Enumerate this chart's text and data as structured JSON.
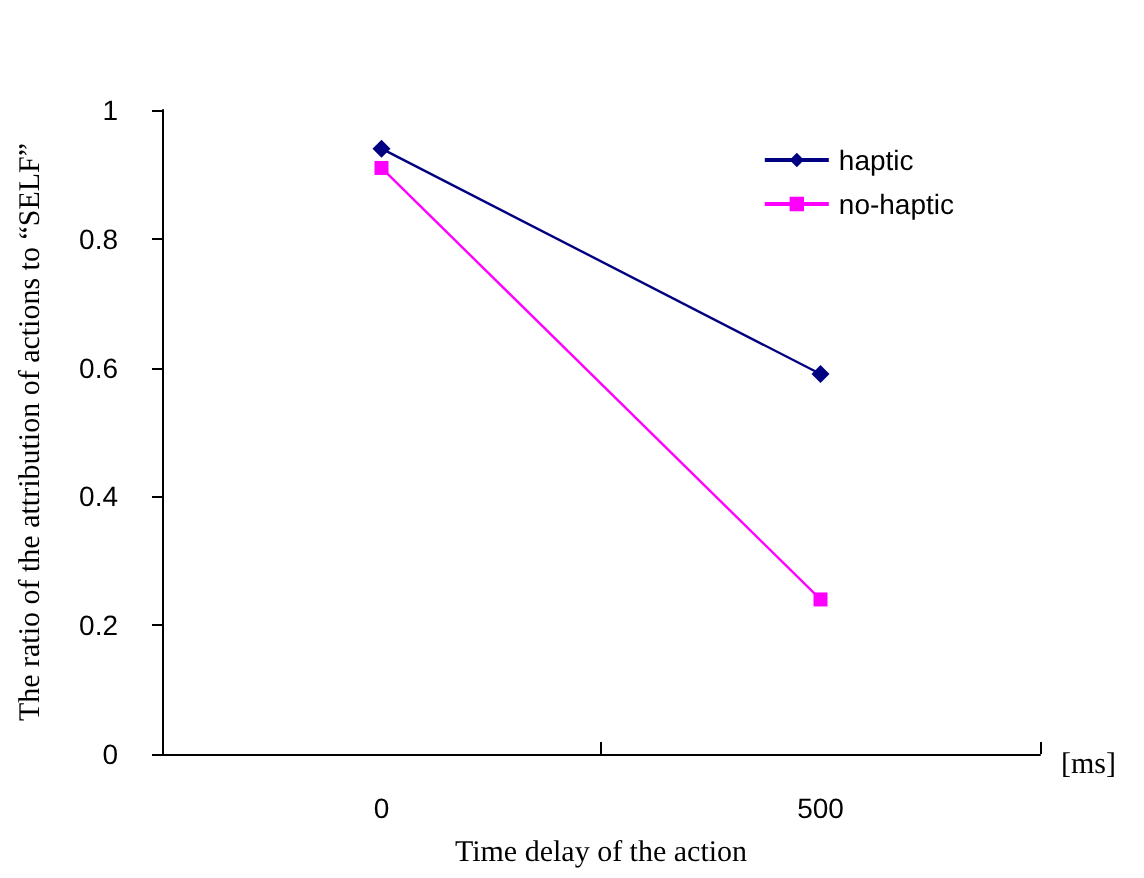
{
  "chart_data": {
    "type": "line",
    "xlabel": "Time delay of the action",
    "ylabel": "The ratio of the attribution of actions to “SELF”",
    "annotations": [
      "[ms]"
    ],
    "categories": [
      "0",
      "500"
    ],
    "series": [
      {
        "name": "haptic",
        "color": "#000080",
        "values": [
          0.94,
          0.59
        ],
        "marker": "diamond"
      },
      {
        "name": "no-haptic",
        "color": "#ff00ff",
        "values": [
          0.91,
          0.24
        ],
        "marker": "square"
      }
    ],
    "ylim": [
      0,
      1
    ],
    "yticks": [
      0,
      0.2,
      0.4,
      0.6,
      0.8,
      1
    ],
    "grid": false,
    "legend": "top right",
    "line_style": "solid"
  }
}
